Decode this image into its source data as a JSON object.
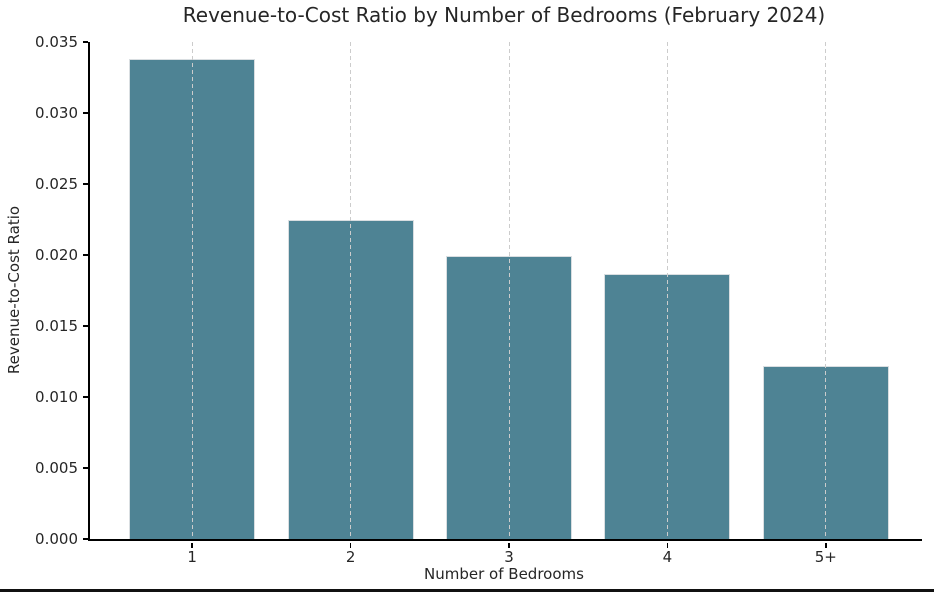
{
  "chart_data": {
    "type": "bar",
    "title": "Revenue-to-Cost Ratio by Number of Bedrooms (February 2024)",
    "xlabel": "Number of Bedrooms",
    "ylabel": "Revenue-to-Cost Ratio",
    "categories": [
      "1",
      "2",
      "3",
      "4",
      "5+"
    ],
    "values": [
      0.0338,
      0.0225,
      0.0199,
      0.0187,
      0.0122
    ],
    "ylim": [
      0,
      0.035
    ],
    "ytick_step": 0.005,
    "ytick_labels": [
      "0.000",
      "0.005",
      "0.010",
      "0.015",
      "0.020",
      "0.025",
      "0.030",
      "0.035"
    ],
    "grid": "vertical-dashed-on-top-of-bars",
    "legend": "none",
    "colors": {
      "bar_fill": "#4e8394",
      "bar_edge": "#d9dee1",
      "gridline": "#cccccc",
      "spine": "#000000",
      "text": "#262626",
      "background": "#ffffff",
      "bottom_rule": "#111111"
    }
  }
}
